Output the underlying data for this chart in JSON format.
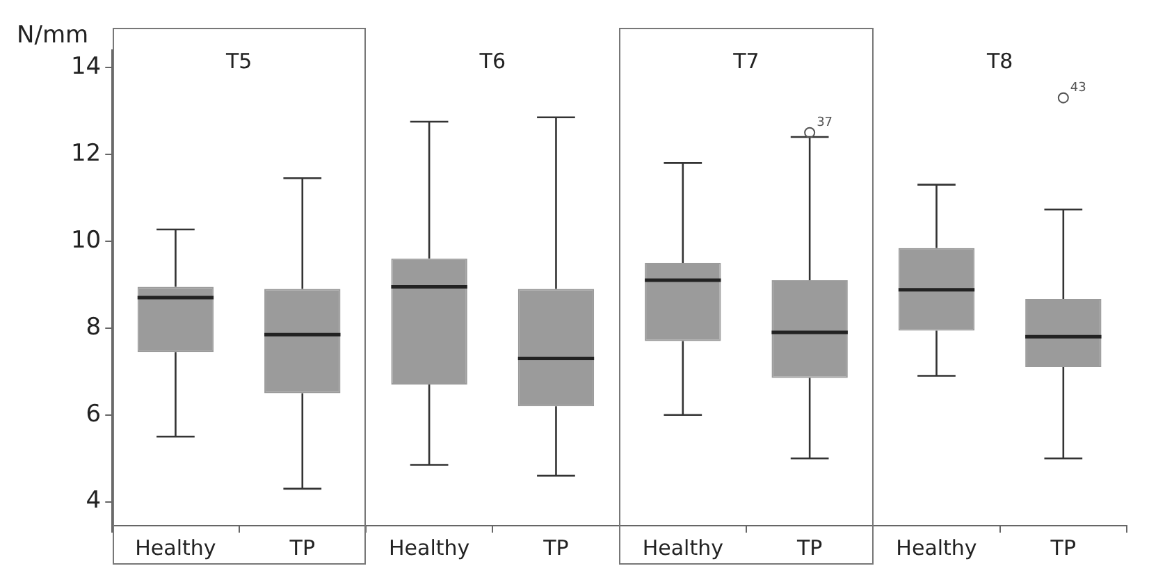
{
  "chart_data": {
    "type": "box",
    "ylabel": "N/mm",
    "categories": [
      "Healthy",
      "TP",
      "Healthy",
      "TP",
      "Healthy",
      "TP",
      "Healthy",
      "TP"
    ],
    "color": "#9b9b9b",
    "boxes": [
      {
        "low": 5.5,
        "q1": 7.45,
        "median": 8.7,
        "q3": 8.95,
        "high": 10.27
      },
      {
        "low": 4.3,
        "q1": 6.5,
        "median": 7.85,
        "q3": 8.9,
        "high": 11.45
      },
      {
        "low": 4.85,
        "q1": 6.7,
        "median": 8.95,
        "q3": 9.6,
        "high": 12.75
      },
      {
        "low": 4.6,
        "q1": 6.2,
        "median": 7.3,
        "q3": 8.9,
        "high": 12.85
      },
      {
        "low": 6.0,
        "q1": 7.7,
        "median": 9.1,
        "q3": 9.5,
        "high": 11.8
      },
      {
        "low": 5.0,
        "q1": 6.85,
        "median": 7.9,
        "q3": 9.1,
        "high": 12.4,
        "outliers": [
          12.5
        ]
      },
      {
        "low": 6.9,
        "q1": 7.94,
        "median": 8.88,
        "q3": 9.84,
        "high": 11.3
      },
      {
        "low": 5.0,
        "q1": 7.1,
        "median": 7.8,
        "q3": 8.67,
        "high": 10.73,
        "outliers": [
          13.3
        ]
      }
    ],
    "ylim": [
      3.45,
      14.4
    ],
    "yticks": [
      4,
      6,
      8,
      10,
      12,
      14
    ],
    "grid": false,
    "legend": false,
    "annotations": [
      "T5",
      "T6",
      "T7",
      "T8",
      "37",
      "43"
    ]
  }
}
